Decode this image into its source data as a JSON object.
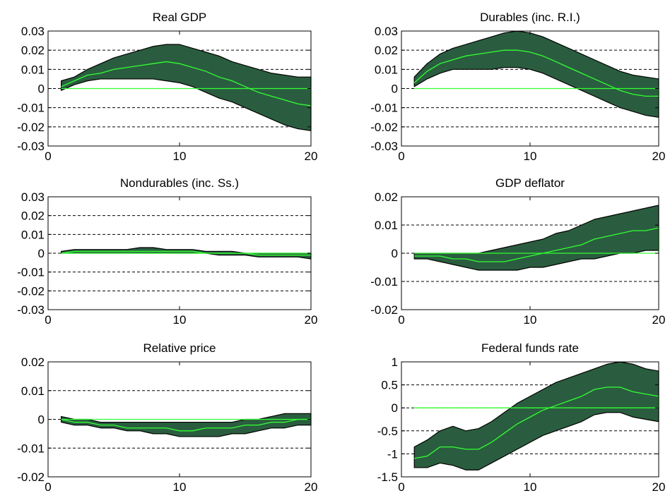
{
  "chart_data": [
    {
      "type": "area",
      "title": "Real GDP",
      "x": [
        1,
        2,
        3,
        4,
        5,
        6,
        7,
        8,
        9,
        10,
        11,
        12,
        13,
        14,
        15,
        16,
        17,
        18,
        19,
        20
      ],
      "ylim": [
        -0.03,
        0.03
      ],
      "xlim": [
        0,
        20
      ],
      "xticks": [
        "0",
        "10",
        "20"
      ],
      "yticks": [
        "-0.03",
        "-0.02",
        "-0.01",
        "0",
        "0.01",
        "0.02",
        "0.03"
      ],
      "grid": "dashed-horizontal",
      "series": [
        {
          "role": "upper_band",
          "values": [
            0.004,
            0.006,
            0.01,
            0.013,
            0.016,
            0.018,
            0.02,
            0.022,
            0.023,
            0.023,
            0.021,
            0.019,
            0.017,
            0.014,
            0.012,
            0.01,
            0.008,
            0.007,
            0.006,
            0.006
          ]
        },
        {
          "role": "lower_band",
          "values": [
            -0.001,
            0.002,
            0.004,
            0.005,
            0.005,
            0.005,
            0.005,
            0.005,
            0.004,
            0.003,
            0.001,
            -0.002,
            -0.005,
            -0.007,
            -0.01,
            -0.013,
            -0.016,
            -0.019,
            -0.021,
            -0.022
          ]
        },
        {
          "role": "median",
          "values": [
            0.001,
            0.004,
            0.007,
            0.008,
            0.01,
            0.011,
            0.012,
            0.013,
            0.014,
            0.013,
            0.011,
            0.009,
            0.006,
            0.004,
            0.001,
            -0.002,
            -0.004,
            -0.006,
            -0.008,
            -0.009
          ]
        }
      ]
    },
    {
      "type": "area",
      "title": "Durables (inc. R.I.)",
      "x": [
        1,
        2,
        3,
        4,
        5,
        6,
        7,
        8,
        9,
        10,
        11,
        12,
        13,
        14,
        15,
        16,
        17,
        18,
        19,
        20
      ],
      "ylim": [
        -0.03,
        0.03
      ],
      "xlim": [
        0,
        20
      ],
      "xticks": [
        "0",
        "10",
        "20"
      ],
      "yticks": [
        "-0.03",
        "-0.02",
        "-0.01",
        "0",
        "0.01",
        "0.02",
        "0.03"
      ],
      "grid": "dashed-horizontal",
      "series": [
        {
          "role": "upper_band",
          "values": [
            0.006,
            0.013,
            0.018,
            0.021,
            0.023,
            0.025,
            0.027,
            0.029,
            0.03,
            0.029,
            0.027,
            0.024,
            0.021,
            0.018,
            0.015,
            0.012,
            0.009,
            0.007,
            0.006,
            0.005
          ]
        },
        {
          "role": "lower_band",
          "values": [
            0.001,
            0.005,
            0.008,
            0.01,
            0.01,
            0.01,
            0.01,
            0.011,
            0.011,
            0.01,
            0.008,
            0.005,
            0.002,
            -0.001,
            -0.004,
            -0.007,
            -0.01,
            -0.012,
            -0.014,
            -0.015
          ]
        },
        {
          "role": "median",
          "values": [
            0.003,
            0.009,
            0.013,
            0.015,
            0.017,
            0.018,
            0.019,
            0.02,
            0.02,
            0.019,
            0.017,
            0.014,
            0.011,
            0.008,
            0.005,
            0.002,
            -0.001,
            -0.003,
            -0.004,
            -0.004
          ]
        }
      ]
    },
    {
      "type": "area",
      "title": "Nondurables (inc. Ss.)",
      "x": [
        1,
        2,
        3,
        4,
        5,
        6,
        7,
        8,
        9,
        10,
        11,
        12,
        13,
        14,
        15,
        16,
        17,
        18,
        19,
        20
      ],
      "ylim": [
        -0.03,
        0.03
      ],
      "xlim": [
        0,
        20
      ],
      "xticks": [
        "0",
        "10",
        "20"
      ],
      "yticks": [
        "-0.03",
        "-0.02",
        "-0.01",
        "0",
        "0.01",
        "0.02",
        "0.03"
      ],
      "grid": "dashed-horizontal",
      "series": [
        {
          "role": "upper_band",
          "values": [
            0.001,
            0.002,
            0.002,
            0.002,
            0.002,
            0.002,
            0.003,
            0.003,
            0.002,
            0.002,
            0.002,
            0.001,
            0.001,
            0.001,
            0.0,
            0.0,
            0.0,
            0.0,
            0.0,
            0.0
          ]
        },
        {
          "role": "lower_band",
          "values": [
            0.0,
            0.0,
            0.0,
            0.0,
            0.0,
            0.0,
            0.0,
            0.0,
            0.0,
            0.0,
            0.0,
            0.0,
            -0.001,
            -0.001,
            -0.001,
            -0.002,
            -0.002,
            -0.002,
            -0.002,
            -0.003
          ]
        },
        {
          "role": "median",
          "values": [
            0.0,
            0.001,
            0.001,
            0.001,
            0.001,
            0.001,
            0.001,
            0.001,
            0.001,
            0.001,
            0.001,
            0.0,
            0.0,
            0.0,
            0.0,
            -0.001,
            -0.001,
            -0.001,
            -0.001,
            -0.001
          ]
        }
      ]
    },
    {
      "type": "area",
      "title": "GDP deflator",
      "x": [
        1,
        2,
        3,
        4,
        5,
        6,
        7,
        8,
        9,
        10,
        11,
        12,
        13,
        14,
        15,
        16,
        17,
        18,
        19,
        20
      ],
      "ylim": [
        -0.02,
        0.02
      ],
      "xlim": [
        0,
        20
      ],
      "xticks": [
        "0",
        "10",
        "20"
      ],
      "yticks": [
        "-0.02",
        "-0.01",
        "0",
        "0.01",
        "0.02"
      ],
      "grid": "dashed-horizontal",
      "series": [
        {
          "role": "upper_band",
          "values": [
            0.0,
            0.0,
            0.0,
            0.0,
            0.0,
            0.0,
            0.001,
            0.002,
            0.003,
            0.004,
            0.005,
            0.007,
            0.008,
            0.01,
            0.012,
            0.013,
            0.014,
            0.015,
            0.016,
            0.017
          ]
        },
        {
          "role": "lower_band",
          "values": [
            -0.002,
            -0.002,
            -0.003,
            -0.004,
            -0.005,
            -0.006,
            -0.006,
            -0.006,
            -0.006,
            -0.005,
            -0.005,
            -0.004,
            -0.003,
            -0.002,
            -0.002,
            -0.001,
            0.0,
            0.0,
            0.001,
            0.001
          ]
        },
        {
          "role": "median",
          "values": [
            -0.001,
            -0.001,
            -0.001,
            -0.002,
            -0.002,
            -0.003,
            -0.003,
            -0.003,
            -0.002,
            -0.001,
            0.0,
            0.001,
            0.002,
            0.003,
            0.005,
            0.006,
            0.007,
            0.008,
            0.008,
            0.009
          ]
        }
      ]
    },
    {
      "type": "area",
      "title": "Relative price",
      "x": [
        1,
        2,
        3,
        4,
        5,
        6,
        7,
        8,
        9,
        10,
        11,
        12,
        13,
        14,
        15,
        16,
        17,
        18,
        19,
        20
      ],
      "ylim": [
        -0.02,
        0.02
      ],
      "xlim": [
        0,
        20
      ],
      "xticks": [
        "0",
        "10",
        "20"
      ],
      "yticks": [
        "-0.02",
        "-0.01",
        "0",
        "0.01",
        "0.02"
      ],
      "grid": "dashed-horizontal",
      "series": [
        {
          "role": "upper_band",
          "values": [
            0.001,
            0.0,
            0.0,
            -0.001,
            -0.001,
            -0.001,
            -0.001,
            -0.001,
            -0.001,
            -0.001,
            -0.001,
            -0.001,
            -0.001,
            -0.001,
            0.0,
            0.0,
            0.001,
            0.002,
            0.002,
            0.002
          ]
        },
        {
          "role": "lower_band",
          "values": [
            -0.001,
            -0.002,
            -0.002,
            -0.003,
            -0.003,
            -0.004,
            -0.004,
            -0.005,
            -0.005,
            -0.006,
            -0.006,
            -0.006,
            -0.006,
            -0.005,
            -0.005,
            -0.004,
            -0.003,
            -0.003,
            -0.002,
            -0.002
          ]
        },
        {
          "role": "median",
          "values": [
            0.0,
            -0.001,
            -0.001,
            -0.002,
            -0.002,
            -0.003,
            -0.003,
            -0.003,
            -0.003,
            -0.004,
            -0.004,
            -0.003,
            -0.003,
            -0.003,
            -0.002,
            -0.002,
            -0.001,
            -0.001,
            0.0,
            0.0
          ]
        }
      ]
    },
    {
      "type": "area",
      "title": "Federal funds rate",
      "x": [
        1,
        2,
        3,
        4,
        5,
        6,
        7,
        8,
        9,
        10,
        11,
        12,
        13,
        14,
        15,
        16,
        17,
        18,
        19,
        20
      ],
      "ylim": [
        -1.5,
        1
      ],
      "xlim": [
        0,
        20
      ],
      "xticks": [
        "0",
        "10",
        "20"
      ],
      "yticks": [
        "-1.5",
        "-1",
        "-0.5",
        "0",
        "0.5",
        "1"
      ],
      "grid": "dashed-horizontal",
      "series": [
        {
          "role": "upper_band",
          "values": [
            -0.85,
            -0.7,
            -0.5,
            -0.4,
            -0.5,
            -0.45,
            -0.3,
            -0.1,
            0.1,
            0.25,
            0.4,
            0.55,
            0.65,
            0.75,
            0.85,
            0.95,
            1.0,
            0.95,
            0.85,
            0.8
          ]
        },
        {
          "role": "lower_band",
          "values": [
            -1.3,
            -1.3,
            -1.2,
            -1.25,
            -1.35,
            -1.35,
            -1.2,
            -1.05,
            -0.9,
            -0.75,
            -0.6,
            -0.5,
            -0.4,
            -0.3,
            -0.15,
            -0.1,
            -0.1,
            -0.2,
            -0.25,
            -0.3
          ]
        },
        {
          "role": "median",
          "values": [
            -1.1,
            -1.05,
            -0.85,
            -0.85,
            -0.9,
            -0.9,
            -0.75,
            -0.55,
            -0.35,
            -0.2,
            -0.05,
            0.05,
            0.15,
            0.25,
            0.4,
            0.45,
            0.45,
            0.35,
            0.3,
            0.25
          ]
        }
      ]
    }
  ],
  "colors": {
    "band_fill": "#2a5d3f",
    "band_edge": "#000000",
    "median_line": "#33ff33",
    "zero_line": "#33ff33",
    "grid": "#000000"
  }
}
